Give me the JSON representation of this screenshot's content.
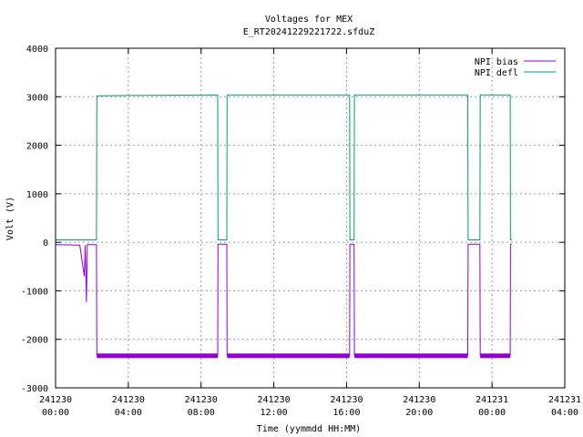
{
  "chart_data": {
    "type": "line",
    "title": "Voltages for MEX",
    "subtitle": "E_RT20241229221722.sfduZ",
    "xlabel": "Time (yymmdd HH:MM)",
    "ylabel": "Volt (V)",
    "ylim": [
      -3000,
      4000
    ],
    "xlim": [
      "2024-12-30 00:00",
      "2024-12-31 04:00"
    ],
    "grid": true,
    "legend_position": "top-right",
    "y_ticks": [
      "-3000",
      "-2000",
      "-1000",
      "0",
      "1000",
      "2000",
      "3000",
      "4000"
    ],
    "x_ticks": [
      {
        "date": "241230",
        "time": "00:00"
      },
      {
        "date": "241230",
        "time": "04:00"
      },
      {
        "date": "241230",
        "time": "08:00"
      },
      {
        "date": "241230",
        "time": "12:00"
      },
      {
        "date": "241230",
        "time": "16:00"
      },
      {
        "date": "241230",
        "time": "20:00"
      },
      {
        "date": "241231",
        "time": "00:00"
      },
      {
        "date": "241231",
        "time": "04:00"
      }
    ],
    "series": [
      {
        "name": "NPI bias",
        "color": "#9400d3",
        "points": [
          [
            "2024-12-30 00:00",
            -50
          ],
          [
            "2024-12-30 01:20",
            -60
          ],
          [
            "2024-12-30 01:35",
            -700
          ],
          [
            "2024-12-30 01:38",
            -60
          ],
          [
            "2024-12-30 01:42",
            -1230
          ],
          [
            "2024-12-30 01:45",
            -50
          ],
          [
            "2024-12-30 02:15",
            -50
          ],
          [
            "2024-12-30 02:16",
            -2330
          ],
          [
            "2024-12-30 08:55",
            -2330
          ],
          [
            "2024-12-30 08:56",
            -40
          ],
          [
            "2024-12-30 09:25",
            -40
          ],
          [
            "2024-12-30 09:26",
            -2330
          ],
          [
            "2024-12-30 16:10",
            -2330
          ],
          [
            "2024-12-30 16:11",
            -40
          ],
          [
            "2024-12-30 16:25",
            -40
          ],
          [
            "2024-12-30 16:26",
            -2330
          ],
          [
            "2024-12-30 22:40",
            -2330
          ],
          [
            "2024-12-30 22:41",
            -40
          ],
          [
            "2024-12-30 23:20",
            -40
          ],
          [
            "2024-12-30 23:21",
            -2330
          ],
          [
            "2024-12-31 01:00",
            -2330
          ],
          [
            "2024-12-31 01:01",
            -40
          ],
          [
            "2024-12-31 01:05",
            -40
          ]
        ]
      },
      {
        "name": "NPI defl",
        "color": "#009e73",
        "points": [
          [
            "2024-12-30 00:00",
            50
          ],
          [
            "2024-12-30 02:15",
            50
          ],
          [
            "2024-12-30 02:16",
            3020
          ],
          [
            "2024-12-30 05:00",
            3030
          ],
          [
            "2024-12-30 08:55",
            3040
          ],
          [
            "2024-12-30 08:56",
            50
          ],
          [
            "2024-12-30 09:25",
            50
          ],
          [
            "2024-12-30 09:26",
            3040
          ],
          [
            "2024-12-30 16:10",
            3040
          ],
          [
            "2024-12-30 16:11",
            50
          ],
          [
            "2024-12-30 16:25",
            50
          ],
          [
            "2024-12-30 16:26",
            3040
          ],
          [
            "2024-12-30 22:40",
            3040
          ],
          [
            "2024-12-30 22:41",
            50
          ],
          [
            "2024-12-30 23:20",
            50
          ],
          [
            "2024-12-30 23:21",
            3040
          ],
          [
            "2024-12-31 01:00",
            3040
          ],
          [
            "2024-12-31 01:01",
            50
          ],
          [
            "2024-12-31 01:05",
            50
          ]
        ]
      }
    ]
  }
}
